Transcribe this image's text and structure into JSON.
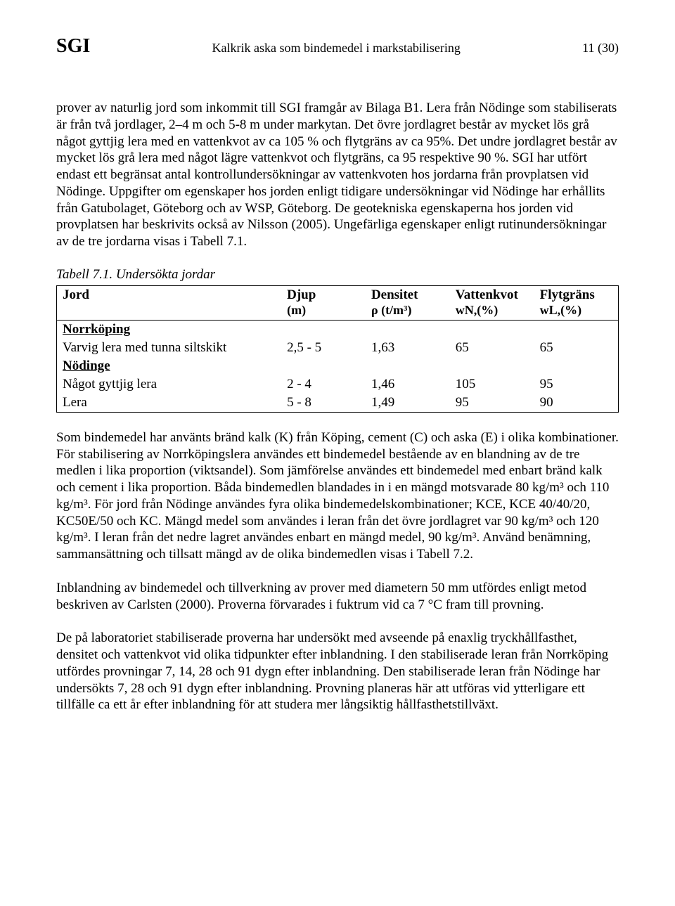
{
  "header": {
    "left": "SGI",
    "center": "Kalkrik aska som bindemedel i markstabilisering",
    "right": "11 (30)"
  },
  "para1": "prover av naturlig jord som inkommit till SGI framgår av Bilaga B1. Lera från Nödinge som stabiliserats är från två jordlager, 2–4 m och 5-8 m under markytan. Det övre jordlagret består av mycket lös grå något gyttjig lera med en vattenkvot av ca 105 % och flytgräns av ca 95%. Det undre jordlagret består av mycket lös grå lera med något lägre vattenkvot och flytgräns, ca 95 respektive 90 %. SGI har utfört endast ett begränsat antal kontrollundersökningar av vattenkvoten hos jordarna från provplatsen vid Nödinge. Uppgifter om egenskaper hos jorden enligt tidigare undersökningar vid Nödinge har erhållits från Gatubolaget, Göteborg och av WSP, Göteborg. De geotekniska egenskaperna hos jorden vid provplatsen har beskrivits också av Nilsson (2005). Ungefärliga egenskaper enligt rutinundersökningar av de tre jordarna visas i Tabell 7.1.",
  "table": {
    "caption": "Tabell 7.1. Undersökta jordar",
    "head": {
      "c0": "Jord",
      "c1": "Djup",
      "c1sub": "(m)",
      "c2": "Densitet",
      "c2sub": "ρ (t/m³)",
      "c3": "Vattenkvot",
      "c3sub": "wN,(%)",
      "c4": "Flytgräns",
      "c4sub": "wL,(%)"
    },
    "group1": {
      "title": "Norrköping",
      "r1": {
        "c0": "Varvig lera med tunna siltskikt",
        "c1": "2,5 - 5",
        "c2": "1,63",
        "c3": "65",
        "c4": "65"
      }
    },
    "group2": {
      "title": "Nödinge",
      "r1": {
        "c0": "Något gyttjig lera",
        "c1": "2 - 4",
        "c2": "1,46",
        "c3": "105",
        "c4": "95"
      },
      "r2": {
        "c0": "Lera",
        "c1": "5 - 8",
        "c2": "1,49",
        "c3": "95",
        "c4": "90"
      }
    }
  },
  "para2": "Som bindemedel har använts bränd kalk (K) från Köping, cement (C) och aska (E) i olika kombinationer. För stabilisering av Norrköpingslera användes ett bindemedel bestående av en blandning av de tre medlen i lika proportion (viktsandel). Som jämförelse användes ett bindemedel med enbart bränd kalk och cement i lika proportion. Båda bindemedlen blandades in i en mängd motsvarade 80 kg/m³ och 110 kg/m³. För jord från Nödinge användes fyra olika bindemedelskombinationer; KCE, KCE 40/40/20, KC50E/50 och KC. Mängd medel som användes i leran från det övre jordlagret var 90 kg/m³ och 120 kg/m³. I leran från det nedre lagret användes enbart en mängd medel, 90 kg/m³. Använd benämning, sammansättning och tillsatt mängd av de olika bindemedlen visas i Tabell 7.2.",
  "para3": "Inblandning av bindemedel och tillverkning av prover med diametern 50 mm utfördes enligt metod beskriven av Carlsten (2000). Proverna förvarades i fuktrum vid ca 7 °C fram till provning.",
  "para4": "De på laboratoriet stabiliserade proverna har undersökt med avseende på enaxlig tryckhållfasthet, densitet och vattenkvot vid olika tidpunkter efter inblandning. I den stabiliserade leran från Norrköping utfördes provningar 7, 14, 28 och 91 dygn efter inblandning. Den stabiliserade leran från Nödinge har undersökts 7, 28 och 91 dygn efter inblandning. Provning planeras här att utföras vid ytterligare ett tillfälle ca ett år efter inblandning för att studera mer långsiktig hållfasthetstillväxt."
}
